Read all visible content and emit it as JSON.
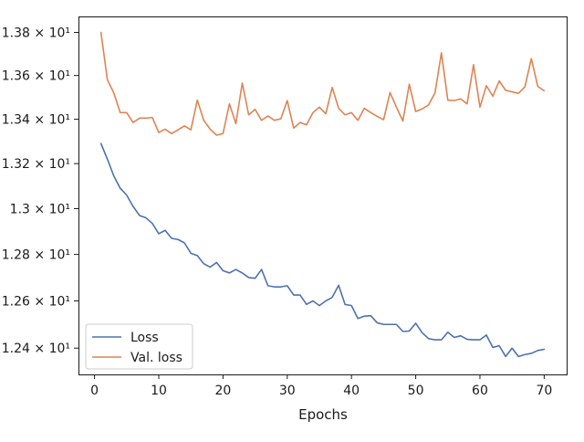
{
  "chart_data": {
    "type": "line",
    "title": "",
    "xlabel": "Epochs",
    "ylabel": "",
    "xlim": [
      -2.5,
      73.5
    ],
    "ylim": [
      12.29,
      13.875
    ],
    "x_ticks": [
      0,
      10,
      20,
      30,
      40,
      50,
      60,
      70
    ],
    "x_tick_labels": [
      "0",
      "10",
      "20",
      "30",
      "40",
      "50",
      "60",
      "70"
    ],
    "y_ticks": [
      12.4,
      12.6,
      12.8,
      13.0,
      13.2,
      13.4,
      13.6,
      13.8
    ],
    "y_tick_labels": [
      "1.24 × 10¹",
      "1.26 × 10¹",
      "1.28 × 10¹",
      "1.3 × 10¹",
      "1.32 × 10¹",
      "1.34 × 10¹",
      "1.36 × 10¹",
      "1.38 × 10¹"
    ],
    "y_scale": "log",
    "grid": false,
    "legend_position": "lower-left",
    "x": [
      1,
      2,
      3,
      4,
      5,
      6,
      7,
      8,
      9,
      10,
      11,
      12,
      13,
      14,
      15,
      16,
      17,
      18,
      19,
      20,
      21,
      22,
      23,
      24,
      25,
      26,
      27,
      28,
      29,
      30,
      31,
      32,
      33,
      34,
      35,
      36,
      37,
      38,
      39,
      40,
      41,
      42,
      43,
      44,
      45,
      46,
      47,
      48,
      49,
      50,
      51,
      52,
      53,
      54,
      55,
      56,
      57,
      58,
      59,
      60,
      61,
      62,
      63,
      64,
      65,
      66,
      67,
      68,
      69,
      70
    ],
    "series": [
      {
        "name": "Loss",
        "color": "#4c72b0",
        "values": [
          13.29,
          13.22,
          13.145,
          13.09,
          13.06,
          13.01,
          12.97,
          12.96,
          12.935,
          12.89,
          12.905,
          12.87,
          12.865,
          12.85,
          12.805,
          12.795,
          12.76,
          12.745,
          12.765,
          12.73,
          12.72,
          12.735,
          12.72,
          12.7,
          12.697,
          12.735,
          12.665,
          12.66,
          12.66,
          12.665,
          12.625,
          12.625,
          12.585,
          12.6,
          12.58,
          12.6,
          12.615,
          12.667,
          12.585,
          12.58,
          12.525,
          12.535,
          12.537,
          12.507,
          12.5,
          12.5,
          12.5,
          12.47,
          12.472,
          12.505,
          12.465,
          12.44,
          12.435,
          12.435,
          12.467,
          12.445,
          12.452,
          12.437,
          12.435,
          12.435,
          12.455,
          12.403,
          12.41,
          12.365,
          12.4,
          12.365,
          12.373,
          12.378,
          12.39,
          12.395
        ]
      },
      {
        "name": "Val. loss",
        "color": "#dd8452",
        "values": [
          13.8,
          13.58,
          13.52,
          13.43,
          13.43,
          13.385,
          13.405,
          13.405,
          13.408,
          13.34,
          13.355,
          13.335,
          13.352,
          13.37,
          13.352,
          13.487,
          13.395,
          13.355,
          13.328,
          13.335,
          13.47,
          13.38,
          13.565,
          13.42,
          13.445,
          13.395,
          13.415,
          13.395,
          13.402,
          13.485,
          13.36,
          13.385,
          13.375,
          13.43,
          13.455,
          13.425,
          13.545,
          13.45,
          13.42,
          13.43,
          13.395,
          13.45,
          13.43,
          13.413,
          13.398,
          13.522,
          13.455,
          13.392,
          13.56,
          13.435,
          13.447,
          13.465,
          13.52,
          13.705,
          13.487,
          13.485,
          13.493,
          13.47,
          13.65,
          13.455,
          13.553,
          13.505,
          13.575,
          13.532,
          13.525,
          13.518,
          13.548,
          13.678,
          13.55,
          13.53
        ]
      }
    ]
  }
}
